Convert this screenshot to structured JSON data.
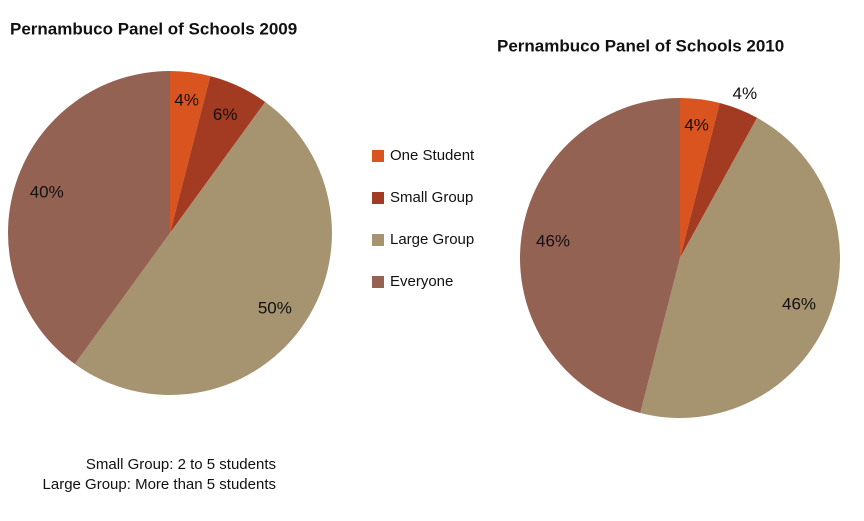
{
  "chart_data": [
    {
      "type": "pie",
      "title": "Pernambuco Panel of Schools 2009",
      "categories": [
        "One Student",
        "Small Group",
        "Large Group",
        "Everyone"
      ],
      "values": [
        4,
        6,
        50,
        40
      ],
      "value_labels": [
        "4%",
        "6%",
        "50%",
        "40%"
      ],
      "colors": [
        "#d9541e",
        "#a33a22",
        "#a69370",
        "#946252"
      ]
    },
    {
      "type": "pie",
      "title": "Pernambuco Panel of Schools 2010",
      "categories": [
        "One Student",
        "Small Group",
        "Large Group",
        "Everyone"
      ],
      "values": [
        4,
        4,
        46,
        46
      ],
      "value_labels": [
        "4%",
        "4%",
        "46%",
        "46%"
      ],
      "colors": [
        "#d9541e",
        "#a33a22",
        "#a69370",
        "#946252"
      ]
    }
  ],
  "notes": [
    "Small Group: 2 to 5 students",
    "Large Group: More than 5 students"
  ]
}
